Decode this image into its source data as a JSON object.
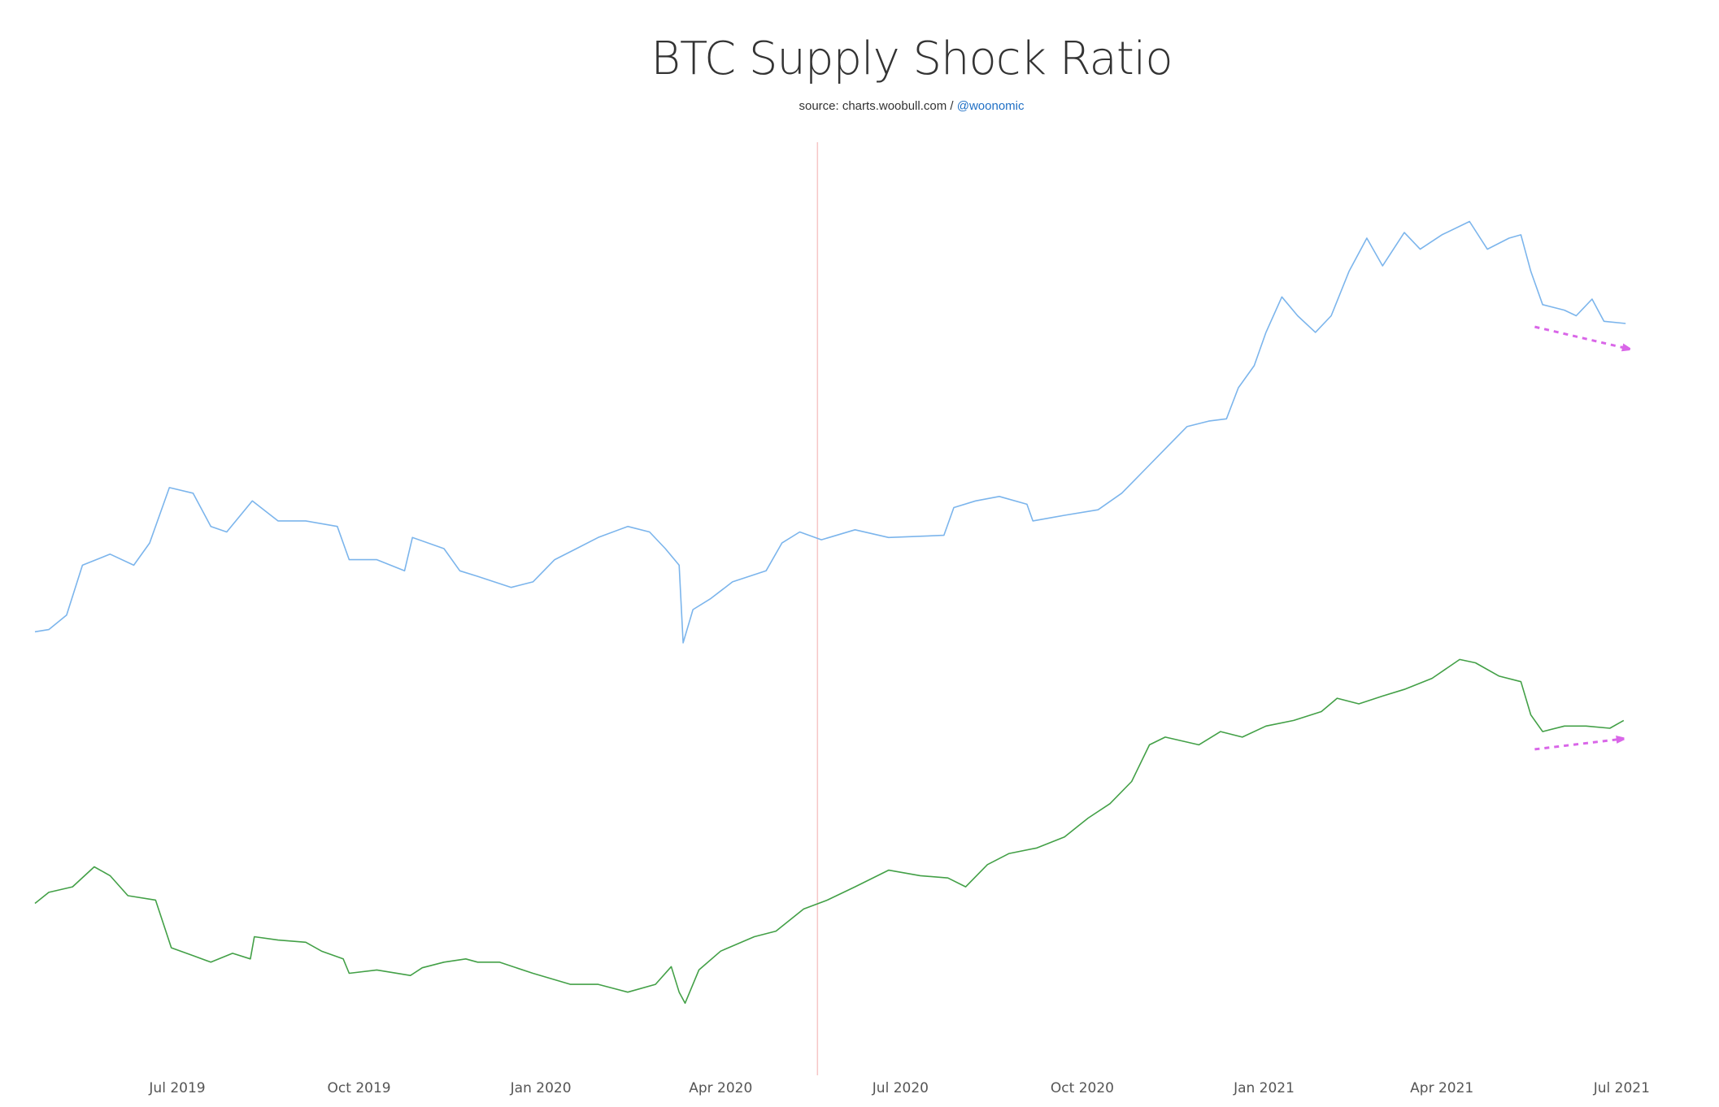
{
  "chart_data": {
    "type": "line",
    "title": "BTC Supply Shock Ratio",
    "subtitle_prefix": "source: charts.woobull.com / ",
    "subtitle_link": "@woonomic",
    "x_origin": "2019-07-01",
    "x_unit": "days since 2019-07-01",
    "xlim": [
      -72,
      735
    ],
    "ylim": [
      0,
      8.4
    ],
    "grid": false,
    "x_ticks": [
      {
        "label": "Jul 2019",
        "x": 0
      },
      {
        "label": "Oct 2019",
        "x": 92
      },
      {
        "label": "Jan 2020",
        "x": 184
      },
      {
        "label": "Apr 2020",
        "x": 275
      },
      {
        "label": "Jul 2020",
        "x": 366
      },
      {
        "label": "Oct 2020",
        "x": 458
      },
      {
        "label": "Jan 2021",
        "x": 550
      },
      {
        "label": "Apr 2021",
        "x": 640
      },
      {
        "label": "Jul 2021",
        "x": 731
      }
    ],
    "vertical_marker": {
      "x": 324,
      "color": "#f6c6c6"
    },
    "series": [
      {
        "name": "blue-series",
        "color": "#7cb5ec",
        "x": [
          -72,
          -65,
          -56,
          -48,
          -34,
          -22,
          -14,
          -4,
          8,
          17,
          25,
          38,
          51,
          65,
          81,
          87,
          101,
          115,
          119,
          135,
          143,
          152,
          169,
          180,
          191,
          202,
          213,
          228,
          239,
          247,
          254,
          256,
          261,
          270,
          281,
          298,
          306,
          315,
          326,
          343,
          360,
          388,
          393,
          404,
          416,
          430,
          433,
          449,
          466,
          478,
          489,
          500,
          511,
          522,
          531,
          537,
          545,
          551,
          559,
          567,
          576,
          584,
          593,
          602,
          610,
          621,
          629,
          640,
          654,
          663,
          674,
          680,
          685,
          691,
          702,
          708,
          716,
          722,
          733
        ],
        "y": [
          4.0,
          4.02,
          4.15,
          4.6,
          4.7,
          4.6,
          4.8,
          5.3,
          5.25,
          4.95,
          4.9,
          5.18,
          5.0,
          5.0,
          4.95,
          4.65,
          4.65,
          4.55,
          4.85,
          4.75,
          4.55,
          4.5,
          4.4,
          4.45,
          4.65,
          4.75,
          4.85,
          4.95,
          4.9,
          4.75,
          4.6,
          3.9,
          4.2,
          4.3,
          4.45,
          4.55,
          4.8,
          4.9,
          4.83,
          4.92,
          4.85,
          4.87,
          5.12,
          5.18,
          5.22,
          5.15,
          5.0,
          5.05,
          5.1,
          5.25,
          5.45,
          5.65,
          5.85,
          5.9,
          5.92,
          6.2,
          6.4,
          6.7,
          7.02,
          6.85,
          6.7,
          6.85,
          7.25,
          7.55,
          7.3,
          7.6,
          7.45,
          7.58,
          7.7,
          7.45,
          7.55,
          7.58,
          7.25,
          6.95,
          6.9,
          6.85,
          7.0,
          6.8,
          6.78
        ]
      },
      {
        "name": "green-series",
        "color": "#43a047",
        "x": [
          -72,
          -65,
          -53,
          -42,
          -34,
          -25,
          -11,
          -3,
          8,
          17,
          28,
          37,
          39,
          51,
          65,
          73,
          84,
          87,
          101,
          118,
          124,
          135,
          146,
          152,
          163,
          180,
          199,
          213,
          228,
          242,
          250,
          254,
          257,
          264,
          275,
          292,
          303,
          317,
          329,
          343,
          360,
          376,
          390,
          399,
          410,
          421,
          435,
          449,
          461,
          472,
          483,
          492,
          500,
          517,
          528,
          539,
          551,
          565,
          579,
          587,
          598,
          610,
          621,
          635,
          649,
          657,
          669,
          680,
          685,
          691,
          702,
          713,
          725,
          732
        ],
        "y": [
          1.55,
          1.65,
          1.7,
          1.88,
          1.8,
          1.62,
          1.58,
          1.15,
          1.08,
          1.02,
          1.1,
          1.05,
          1.25,
          1.22,
          1.2,
          1.12,
          1.05,
          0.92,
          0.95,
          0.9,
          0.97,
          1.02,
          1.05,
          1.02,
          1.02,
          0.92,
          0.82,
          0.82,
          0.75,
          0.82,
          0.98,
          0.75,
          0.65,
          0.95,
          1.12,
          1.25,
          1.3,
          1.5,
          1.58,
          1.7,
          1.85,
          1.8,
          1.78,
          1.7,
          1.9,
          2.0,
          2.05,
          2.15,
          2.32,
          2.45,
          2.65,
          2.98,
          3.05,
          2.98,
          3.1,
          3.05,
          3.15,
          3.2,
          3.28,
          3.4,
          3.35,
          3.42,
          3.48,
          3.58,
          3.75,
          3.72,
          3.6,
          3.55,
          3.25,
          3.1,
          3.15,
          3.15,
          3.13,
          3.2
        ]
      }
    ],
    "annotations": [
      {
        "type": "dashed-arrow",
        "color": "#d966e8",
        "from": [
          687,
          6.75
        ],
        "to": [
          737,
          6.54
        ]
      },
      {
        "type": "dashed-arrow",
        "color": "#d966e8",
        "from": [
          687,
          2.94
        ],
        "to": [
          734,
          3.04
        ]
      }
    ]
  }
}
